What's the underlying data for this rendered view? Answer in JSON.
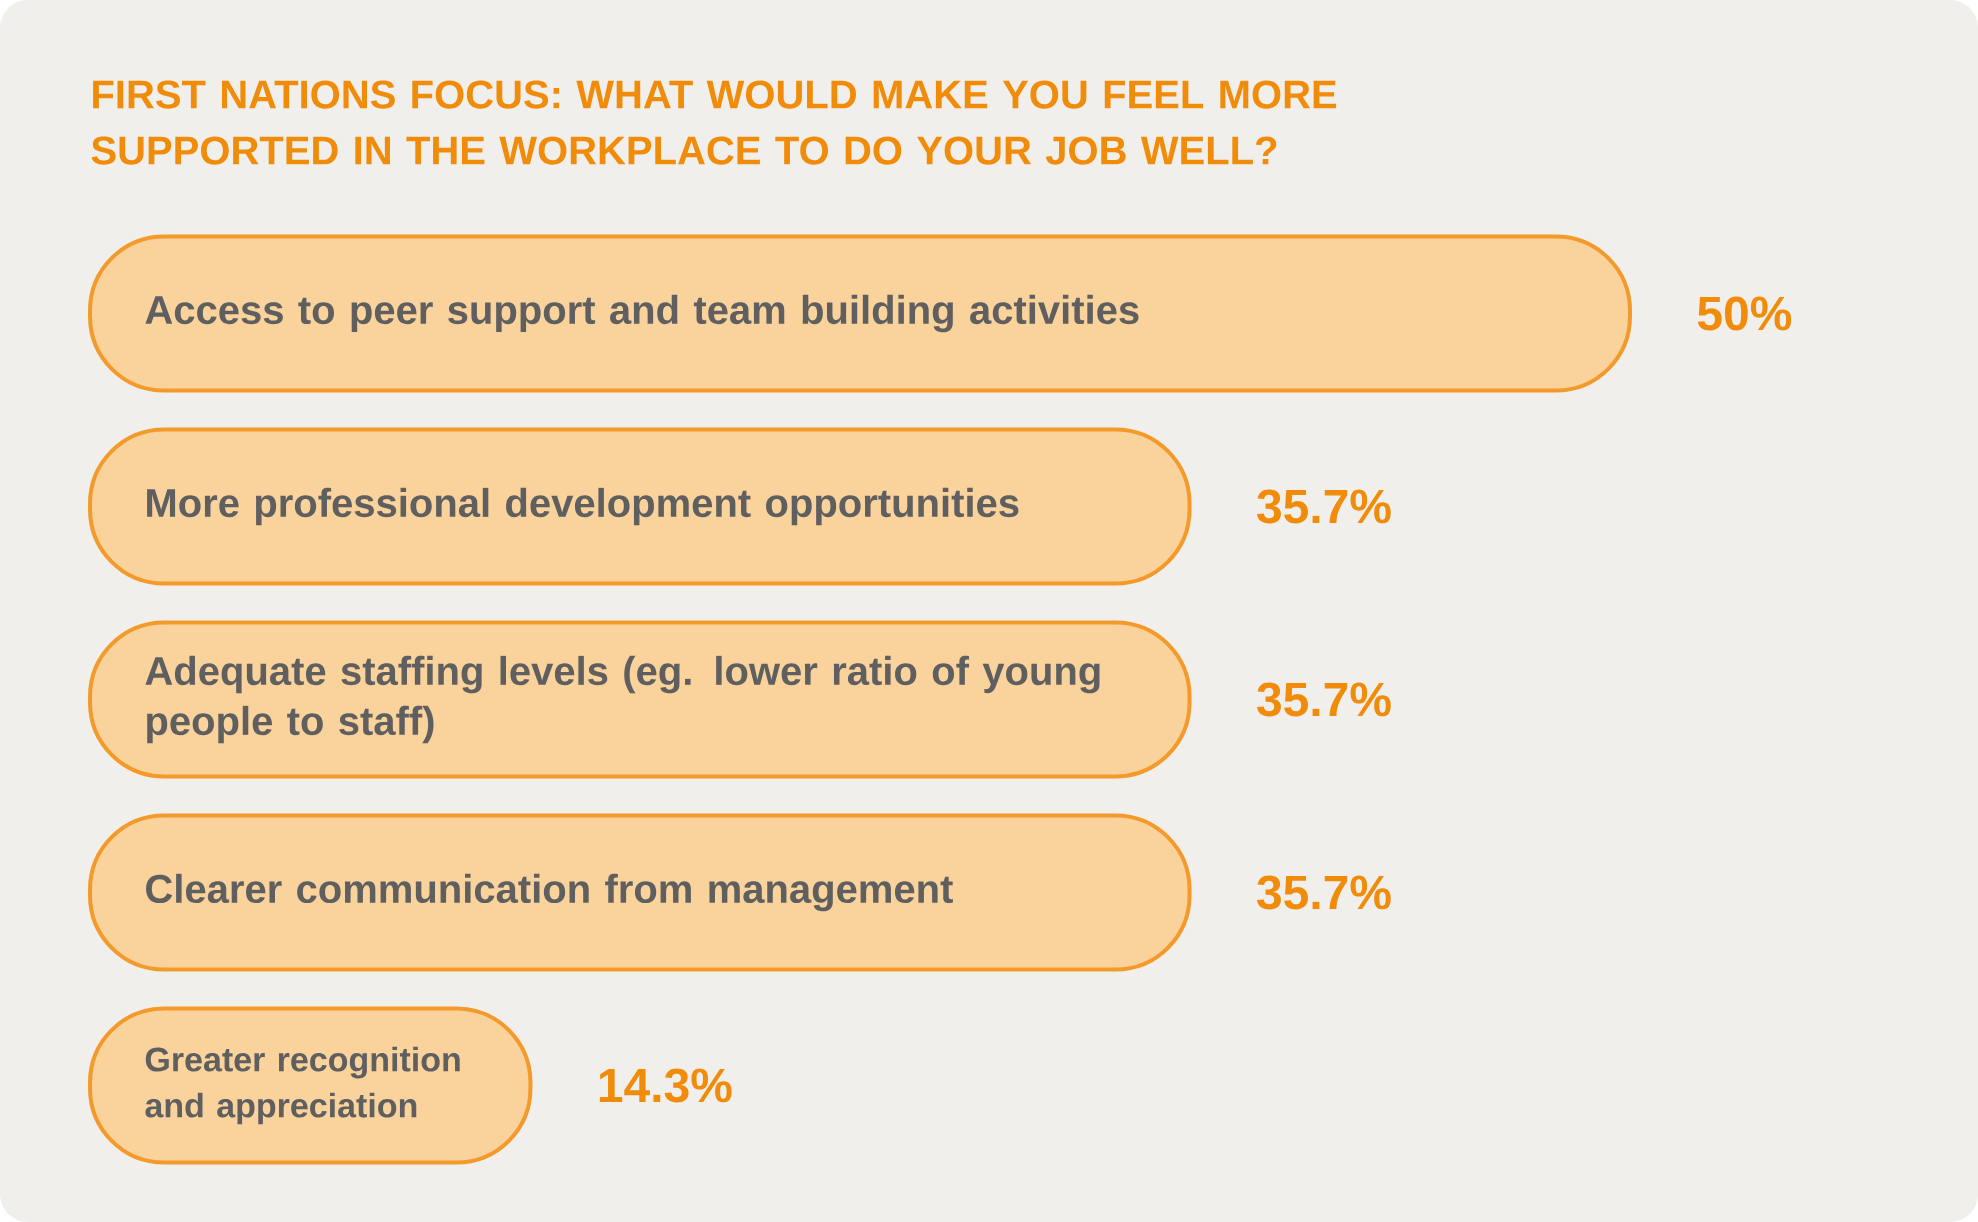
{
  "chart_data": {
    "type": "bar",
    "orientation": "horizontal",
    "title": "FIRST NATIONS FOCUS: WHAT WOULD MAKE YOU FEEL MORE SUPPORTED IN THE WORKPLACE TO DO YOUR JOB WELL?",
    "categories": [
      "Access to peer support and team building activities",
      "More professional development opportunities",
      "Adequate staffing levels (eg. lower ratio of young people to staff)",
      "Clearer communication from management",
      "Greater recognition and appreciation"
    ],
    "values": [
      50,
      35.7,
      35.7,
      35.7,
      14.3
    ],
    "value_labels": [
      "50%",
      "35.7%",
      "35.7%",
      "35.7%",
      "14.3%"
    ],
    "color": "#f9d29c"
  }
}
